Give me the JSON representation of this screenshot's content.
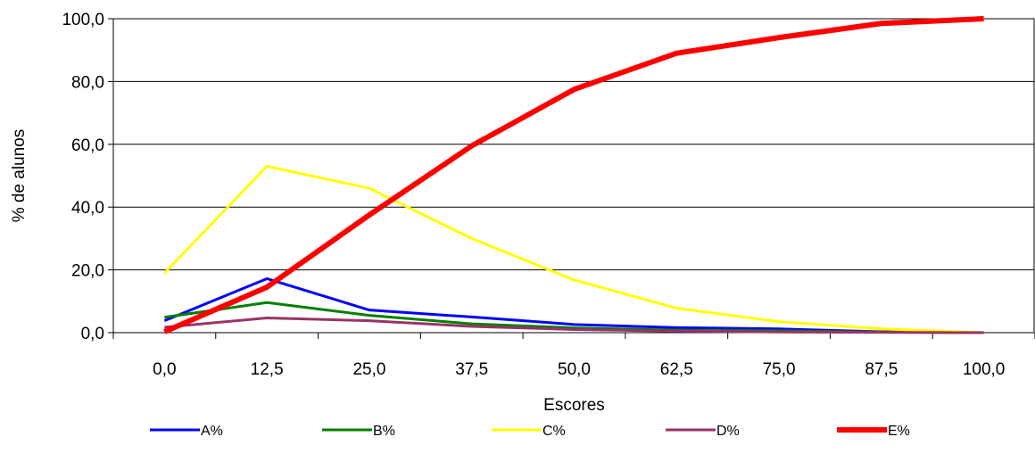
{
  "chart_data": {
    "type": "line",
    "title": "",
    "xlabel": "Escores",
    "ylabel": "% de alunos",
    "categories": [
      "0,0",
      "12,5",
      "25,0",
      "37,5",
      "50,0",
      "62,5",
      "75,0",
      "87,5",
      "100,0"
    ],
    "ylim": [
      0,
      100
    ],
    "yticks": [
      "0,0",
      "20,0",
      "40,0",
      "60,0",
      "80,0",
      "100,0"
    ],
    "grid": true,
    "legend_position": "bottom",
    "series": [
      {
        "name": "A%",
        "color": "#0000ff",
        "values": [
          3.8,
          17.2,
          7.2,
          5.0,
          2.6,
          1.6,
          1.2,
          0.3,
          0.0
        ]
      },
      {
        "name": "B%",
        "color": "#008000",
        "values": [
          4.9,
          9.6,
          5.5,
          2.8,
          1.5,
          0.8,
          0.6,
          0.2,
          0.0
        ]
      },
      {
        "name": "C%",
        "color": "#ffff00",
        "values": [
          19.0,
          53.0,
          46.0,
          30.0,
          16.8,
          7.8,
          3.5,
          1.2,
          0.0
        ]
      },
      {
        "name": "D%",
        "color": "#993366",
        "values": [
          1.7,
          4.7,
          3.8,
          2.0,
          1.0,
          0.5,
          0.2,
          0.1,
          0.0
        ]
      },
      {
        "name": "E%",
        "color": "#ff0000",
        "values": [
          0.3,
          14.5,
          37.5,
          59.5,
          77.5,
          89.0,
          94.0,
          98.5,
          100.0
        ]
      }
    ]
  }
}
